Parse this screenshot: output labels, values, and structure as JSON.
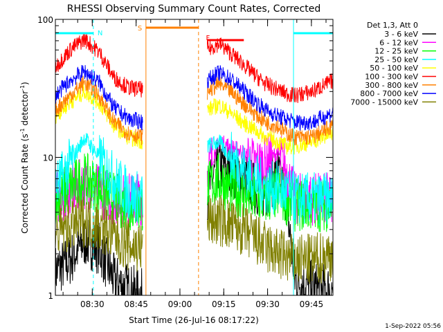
{
  "chart_data": {
    "type": "line",
    "title": "RHESSI Observing Summary Count Rates, Corrected",
    "xlabel": "Start Time (26-Jul-16 08:17:22)",
    "ylabel_main": "Corrected Count Rate (s",
    "ylabel_sup1": "-1",
    "ylabel_mid": " detector",
    "ylabel_sup2": "-1",
    "ylabel_end": ")",
    "yscale": "log",
    "ylim": [
      1,
      100
    ],
    "xlim_minutes": [
      0,
      95
    ],
    "y_tick_labels": [
      "100",
      "10",
      "1"
    ],
    "x_tick_labels": [
      "08:30",
      "08:45",
      "09:00",
      "09:15",
      "09:30",
      "09:45"
    ],
    "x_tick_minutes": [
      12.63,
      27.63,
      42.63,
      57.63,
      72.63,
      87.63
    ],
    "legend_title": "Det 1,3, Att 0",
    "timestamp": "1-Sep-2022 05:56",
    "flags": [
      {
        "label": "N",
        "color": "#00ffff"
      },
      {
        "label": "S",
        "color": "#ff8000"
      },
      {
        "label": "F",
        "color": "#ff0000"
      }
    ],
    "intervals": {
      "night": [
        [
          0,
          13
        ],
        [
          81.5,
          95
        ]
      ],
      "saa": [
        [
          31,
          49
        ]
      ],
      "flare": [
        [
          52,
          64.5
        ]
      ]
    },
    "gap_minutes": [
      30,
      52
    ],
    "series": [
      {
        "name": "3 - 6 keV",
        "color": "#000000",
        "points": [
          [
            0,
            1.5
          ],
          [
            5,
            1.8
          ],
          [
            10,
            2.5
          ],
          [
            15,
            2.2
          ],
          [
            20,
            1.3
          ],
          [
            25,
            1.1
          ],
          [
            30,
            1.0
          ],
          [
            52,
            5.5
          ],
          [
            56,
            9.0
          ],
          [
            60,
            8.0
          ],
          [
            64,
            7.5
          ],
          [
            68,
            6.0
          ],
          [
            72,
            5.5
          ],
          [
            76,
            8.0
          ],
          [
            79,
            5.0
          ],
          [
            82,
            1.3
          ],
          [
            86,
            1.2
          ],
          [
            90,
            1.1
          ],
          [
            95,
            1.1
          ]
        ]
      },
      {
        "name": "6 - 12 keV",
        "color": "#ff00ff",
        "points": [
          [
            0,
            5
          ],
          [
            10,
            6.5
          ],
          [
            20,
            5
          ],
          [
            30,
            5
          ],
          [
            52,
            8
          ],
          [
            56,
            13
          ],
          [
            60,
            12
          ],
          [
            64,
            11
          ],
          [
            68,
            9
          ],
          [
            72,
            9
          ],
          [
            76,
            11
          ],
          [
            79,
            8
          ],
          [
            82,
            5
          ],
          [
            88,
            5
          ],
          [
            95,
            5
          ]
        ]
      },
      {
        "name": "12 - 25 keV",
        "color": "#00ff00",
        "points": [
          [
            0,
            5
          ],
          [
            5,
            6
          ],
          [
            10,
            7
          ],
          [
            15,
            6
          ],
          [
            20,
            5
          ],
          [
            25,
            4.5
          ],
          [
            30,
            4.5
          ],
          [
            52,
            6
          ],
          [
            56,
            7
          ],
          [
            60,
            6
          ],
          [
            64,
            5.5
          ],
          [
            68,
            5
          ],
          [
            72,
            5
          ],
          [
            76,
            5.5
          ],
          [
            79,
            5
          ],
          [
            82,
            4.5
          ],
          [
            88,
            4.5
          ],
          [
            95,
            4.5
          ]
        ]
      },
      {
        "name": "25 - 50 keV",
        "color": "#00ffff",
        "points": [
          [
            0,
            6
          ],
          [
            5,
            9
          ],
          [
            10,
            14
          ],
          [
            15,
            10
          ],
          [
            20,
            7
          ],
          [
            25,
            5.5
          ],
          [
            30,
            5
          ],
          [
            52,
            12
          ],
          [
            56,
            13
          ],
          [
            60,
            10
          ],
          [
            64,
            8.5
          ],
          [
            68,
            7
          ],
          [
            72,
            6
          ],
          [
            76,
            6
          ],
          [
            79,
            5.5
          ],
          [
            82,
            5
          ],
          [
            88,
            5
          ],
          [
            95,
            5
          ]
        ]
      },
      {
        "name": "50 - 100 keV",
        "color": "#ffff00",
        "points": [
          [
            0,
            20
          ],
          [
            5,
            25
          ],
          [
            10,
            30
          ],
          [
            15,
            25
          ],
          [
            20,
            17
          ],
          [
            25,
            14
          ],
          [
            30,
            13
          ],
          [
            52,
            22
          ],
          [
            56,
            24
          ],
          [
            60,
            21
          ],
          [
            64,
            18
          ],
          [
            68,
            16
          ],
          [
            72,
            14
          ],
          [
            76,
            13
          ],
          [
            79,
            12
          ],
          [
            82,
            12
          ],
          [
            88,
            13
          ],
          [
            95,
            15
          ]
        ]
      },
      {
        "name": "100 - 300 keV",
        "color": "#ff0000",
        "points": [
          [
            0,
            45
          ],
          [
            5,
            60
          ],
          [
            10,
            72
          ],
          [
            15,
            58
          ],
          [
            20,
            38
          ],
          [
            25,
            32
          ],
          [
            30,
            31
          ],
          [
            52,
            60
          ],
          [
            56,
            67
          ],
          [
            60,
            57
          ],
          [
            64,
            48
          ],
          [
            68,
            40
          ],
          [
            72,
            34
          ],
          [
            76,
            31
          ],
          [
            79,
            29
          ],
          [
            82,
            28
          ],
          [
            88,
            30
          ],
          [
            95,
            36
          ]
        ]
      },
      {
        "name": "300 - 800 keV",
        "color": "#ff8000",
        "points": [
          [
            0,
            22
          ],
          [
            5,
            28
          ],
          [
            10,
            35
          ],
          [
            15,
            28
          ],
          [
            20,
            18
          ],
          [
            25,
            15
          ],
          [
            30,
            14
          ],
          [
            52,
            30
          ],
          [
            56,
            34
          ],
          [
            60,
            30
          ],
          [
            64,
            25
          ],
          [
            68,
            21
          ],
          [
            72,
            18
          ],
          [
            76,
            17
          ],
          [
            79,
            15
          ],
          [
            82,
            14
          ],
          [
            88,
            14
          ],
          [
            95,
            17
          ]
        ]
      },
      {
        "name": "800 - 7000 keV",
        "color": "#0000ff",
        "points": [
          [
            0,
            28
          ],
          [
            5,
            36
          ],
          [
            10,
            42
          ],
          [
            15,
            35
          ],
          [
            20,
            23
          ],
          [
            25,
            19
          ],
          [
            30,
            18
          ],
          [
            52,
            36
          ],
          [
            56,
            41
          ],
          [
            60,
            37
          ],
          [
            64,
            31
          ],
          [
            68,
            26
          ],
          [
            72,
            22
          ],
          [
            76,
            20
          ],
          [
            79,
            19
          ],
          [
            82,
            18
          ],
          [
            88,
            18
          ],
          [
            95,
            21
          ]
        ]
      },
      {
        "name": "7000 - 15000 keV",
        "color": "#808000",
        "points": [
          [
            0,
            2.8
          ],
          [
            5,
            3.2
          ],
          [
            10,
            3.5
          ],
          [
            15,
            3.2
          ],
          [
            20,
            2.7
          ],
          [
            25,
            2.3
          ],
          [
            30,
            2.2
          ],
          [
            52,
            3.5
          ],
          [
            56,
            3.5
          ],
          [
            60,
            3.2
          ],
          [
            64,
            3
          ],
          [
            68,
            2.6
          ],
          [
            72,
            2.2
          ],
          [
            76,
            2
          ],
          [
            79,
            1.9
          ],
          [
            82,
            1.8
          ],
          [
            88,
            1.8
          ],
          [
            95,
            2
          ]
        ]
      }
    ]
  }
}
